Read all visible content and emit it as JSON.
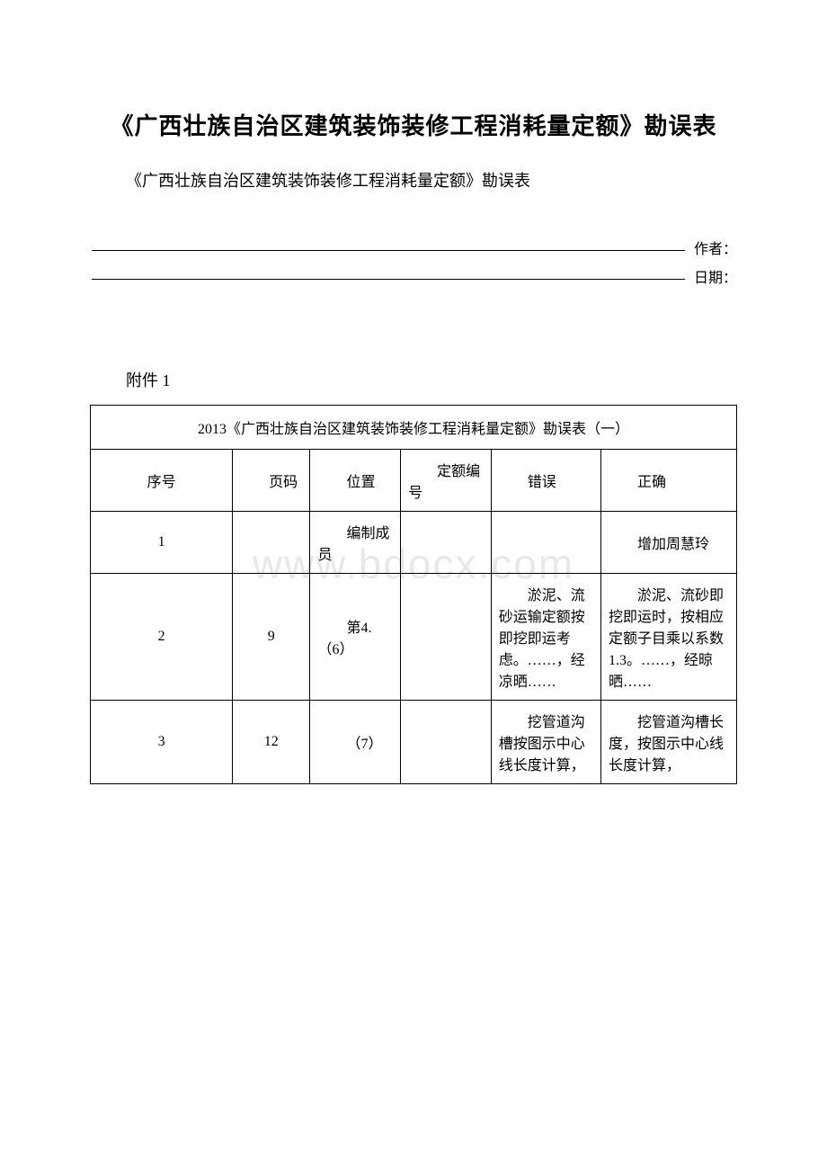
{
  "watermark": "www.bdocx.com",
  "main_title": "《广西壮族自治区建筑装饰装修工程消耗量定额》勘误表",
  "sub_title": "《广西壮族自治区建筑装饰装修工程消耗量定额》勘误表",
  "meta": {
    "author_label": "作者：",
    "date_label": "日期："
  },
  "attachment_label": "附件 1",
  "table": {
    "caption": "2013《广西壮族自治区建筑装饰装修工程消耗量定额》勘误表（一）",
    "headers": {
      "seq": "序号",
      "page": "页码",
      "position": "位置",
      "quota_code": "定额编号",
      "error": "错误",
      "correct": "正确"
    },
    "rows": [
      {
        "seq": "1",
        "page": "",
        "position": "编制成员",
        "quota_code": "",
        "error": "",
        "correct": "增加周慧玲"
      },
      {
        "seq": "2",
        "page": "9",
        "position": "第4.（6）",
        "quota_code": "",
        "error": "淤泥、流砂运输定额按即挖即运考虑。……，经凉晒……",
        "correct": "淤泥、流砂即挖即运时，按相应定额子目乘以系数1.3。……，经晾晒……"
      },
      {
        "seq": "3",
        "page": "12",
        "position": "（7）",
        "quota_code": "",
        "error": "挖管道沟槽按图示中心线长度计算，",
        "correct": "挖管道沟槽长度，按图示中心线长度计算，"
      }
    ]
  }
}
